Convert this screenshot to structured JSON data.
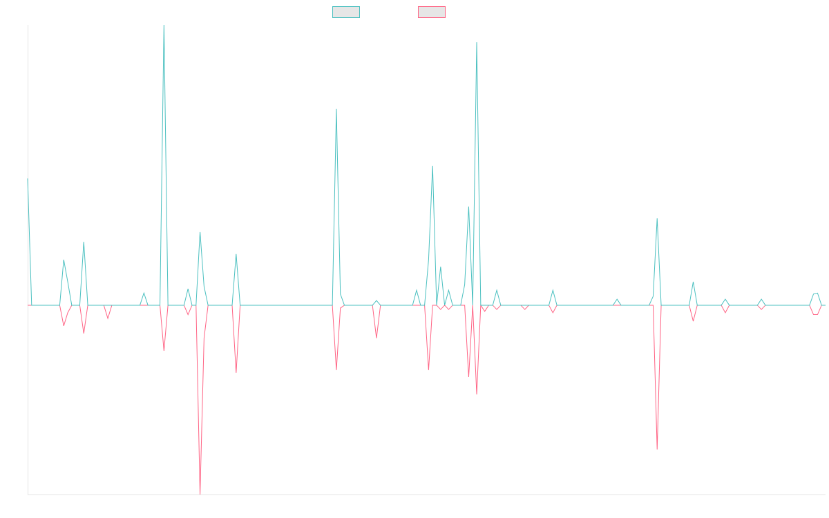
{
  "chart_data": {
    "type": "line",
    "categories": [
      null,
      null,
      null,
      null,
      null,
      null,
      null,
      null,
      null,
      null,
      null,
      null,
      null,
      null,
      null,
      null,
      null,
      null,
      null,
      null,
      null,
      null,
      null,
      null,
      null,
      null,
      null,
      null,
      null,
      null,
      null,
      null,
      null,
      null,
      null,
      null,
      null,
      null,
      null,
      null,
      null,
      null,
      null,
      null,
      null,
      null,
      null,
      null,
      null,
      null,
      null,
      null,
      null,
      null,
      null,
      null,
      null,
      null,
      null,
      null,
      null,
      null,
      null,
      null,
      null,
      null,
      null,
      null,
      null,
      null,
      null,
      null,
      null,
      null,
      null,
      null,
      null,
      null,
      null,
      null,
      null,
      null,
      null,
      null,
      null,
      null,
      null,
      null,
      null,
      null,
      null,
      null,
      null,
      null,
      null,
      null,
      null,
      null,
      null,
      null,
      null,
      null,
      null,
      null,
      null,
      null,
      null,
      null,
      null,
      null,
      null,
      null,
      null,
      null,
      null,
      null,
      null,
      null,
      null,
      null,
      null,
      null,
      null,
      null,
      null,
      null,
      null,
      null,
      null,
      null,
      null,
      null,
      null,
      null,
      null,
      null,
      null,
      null,
      null,
      null,
      null,
      null,
      null,
      null,
      null,
      null,
      null,
      null,
      null,
      null,
      null,
      null,
      null,
      null,
      null,
      null,
      null,
      null,
      null,
      null,
      null,
      null,
      null,
      null,
      null,
      null,
      null,
      null,
      null,
      null,
      null,
      null,
      null,
      null,
      null,
      null,
      null,
      null,
      null,
      null,
      null,
      null,
      null,
      null,
      null,
      null,
      null,
      null,
      null,
      null,
      null,
      null,
      null,
      null,
      null,
      null,
      null,
      null,
      null,
      null
    ],
    "ylim": [
      -40.3,
      59.7
    ],
    "series": [
      {
        "color": "#4bc0c0",
        "values": [
          27,
          0,
          0,
          0,
          0,
          0,
          0,
          0,
          0,
          9.7,
          5,
          0,
          0,
          0,
          13.5,
          0,
          0,
          0,
          0,
          0,
          0,
          0,
          0,
          0,
          0,
          0,
          0,
          0,
          0,
          2.6,
          0,
          0,
          0,
          0,
          59.7,
          0,
          0,
          0,
          0,
          0,
          3.5,
          0,
          0,
          15.6,
          4,
          0,
          0,
          0,
          0,
          0,
          0,
          0,
          10.9,
          0,
          0,
          0,
          0,
          0,
          0,
          0,
          0,
          0,
          0,
          0,
          0,
          0,
          0,
          0,
          0,
          0,
          0,
          0,
          0,
          0,
          0,
          0,
          0,
          41.8,
          2.4,
          0,
          0,
          0,
          0,
          0,
          0,
          0,
          0,
          1,
          0,
          0,
          0,
          0,
          0,
          0,
          0,
          0,
          0,
          3.2,
          0,
          0,
          9.7,
          29.7,
          0,
          8.2,
          0,
          3.2,
          0,
          0,
          0,
          4.4,
          21,
          0,
          56,
          0,
          0,
          0,
          0,
          3.2,
          0,
          0,
          0,
          0,
          0,
          0,
          0,
          0,
          0,
          0,
          0,
          0,
          0,
          3.2,
          0,
          0,
          0,
          0,
          0,
          0,
          0,
          0,
          0,
          0,
          0,
          0,
          0,
          0,
          0,
          1.3,
          0,
          0,
          0,
          0,
          0,
          0,
          0,
          0,
          1.9,
          18.5,
          0,
          0,
          0,
          0,
          0,
          0,
          0,
          0,
          5,
          0,
          0,
          0,
          0,
          0,
          0,
          0,
          1.3,
          0,
          0,
          0,
          0,
          0,
          0,
          0,
          0,
          1.3,
          0,
          0,
          0,
          0,
          0,
          0,
          0,
          0,
          0,
          0,
          0,
          0,
          2.4,
          2.6,
          0,
          0
        ]
      },
      {
        "color": "#ff6384",
        "values": [
          0,
          0,
          0,
          0,
          0,
          0,
          0,
          0,
          0,
          -4.4,
          -1.6,
          0,
          0,
          0,
          -6,
          0,
          0,
          0,
          0,
          0,
          -2.8,
          0,
          0,
          0,
          0,
          0,
          0,
          0,
          0,
          0,
          0,
          0,
          0,
          0,
          -9.7,
          0,
          0,
          0,
          0,
          0,
          -2,
          0,
          0,
          -40.3,
          -7,
          0,
          0,
          0,
          0,
          0,
          0,
          0,
          -14.4,
          0,
          0,
          0,
          0,
          0,
          0,
          0,
          0,
          0,
          0,
          0,
          0,
          0,
          0,
          0,
          0,
          0,
          0,
          0,
          0,
          0,
          0,
          0,
          0,
          -13.8,
          -0.6,
          0,
          0,
          0,
          0,
          0,
          0,
          0,
          0,
          -7,
          0,
          0,
          0,
          0,
          0,
          0,
          0,
          0,
          0,
          0,
          0,
          0,
          -13.8,
          0,
          0,
          -0.9,
          0,
          -0.9,
          0,
          0,
          0,
          0,
          -15.3,
          0,
          -19,
          0,
          -1.3,
          0,
          0,
          -0.9,
          0,
          0,
          0,
          0,
          0,
          0,
          -0.9,
          0,
          0,
          0,
          0,
          0,
          0,
          -1.6,
          0,
          0,
          0,
          0,
          0,
          0,
          0,
          0,
          0,
          0,
          0,
          0,
          0,
          0,
          0,
          0,
          0,
          0,
          0,
          0,
          0,
          0,
          0,
          0,
          0,
          -30.7,
          0,
          0,
          0,
          0,
          0,
          0,
          0,
          0,
          -3.4,
          0,
          0,
          0,
          0,
          0,
          0,
          0,
          -1.6,
          0,
          0,
          0,
          0,
          0,
          0,
          0,
          0,
          -0.9,
          0,
          0,
          0,
          0,
          0,
          0,
          0,
          0,
          0,
          0,
          0,
          0,
          -2,
          -2,
          0,
          0
        ]
      }
    ]
  }
}
